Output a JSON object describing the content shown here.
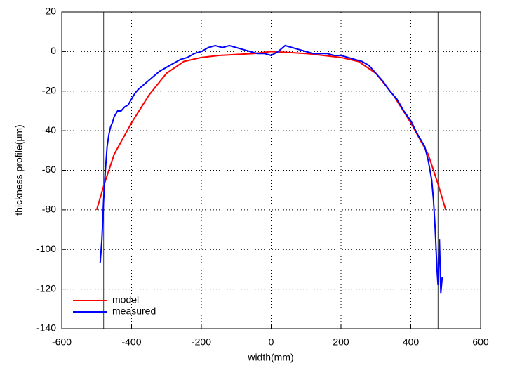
{
  "chart_data": {
    "type": "line",
    "x_label": "width(mm)",
    "y_label": "thickness profile(μm)",
    "xlim": [
      -600,
      600
    ],
    "ylim": [
      -140,
      20
    ],
    "xticks": [
      -600,
      -400,
      -200,
      0,
      200,
      400,
      600
    ],
    "yticks": [
      -140,
      -120,
      -100,
      -80,
      -60,
      -40,
      -20,
      0,
      20
    ],
    "grid": true,
    "legend": "lower-left",
    "vlines": [
      -480,
      478
    ],
    "series": [
      {
        "name": "model",
        "color": "#ff0000",
        "x": [
          -500,
          -480,
          -450,
          -400,
          -350,
          -300,
          -250,
          -200,
          -150,
          -100,
          -50,
          0,
          50,
          100,
          150,
          200,
          250,
          300,
          350,
          400,
          450,
          480,
          500
        ],
        "values": [
          -80,
          -68,
          -52,
          -36,
          -22,
          -11,
          -5,
          -3,
          -2,
          -1.5,
          -1,
          0,
          -0.5,
          -1,
          -2,
          -3,
          -5,
          -11,
          -22,
          -36,
          -52,
          -68,
          -80
        ]
      },
      {
        "name": "measured",
        "color": "#0000ff",
        "x": [
          -490,
          -485,
          -480,
          -475,
          -470,
          -465,
          -460,
          -455,
          -450,
          -440,
          -430,
          -420,
          -410,
          -400,
          -390,
          -380,
          -360,
          -340,
          -320,
          -300,
          -280,
          -260,
          -240,
          -220,
          -200,
          -180,
          -160,
          -140,
          -120,
          -100,
          -80,
          -60,
          -40,
          -20,
          0,
          20,
          40,
          60,
          80,
          100,
          120,
          140,
          160,
          180,
          200,
          220,
          240,
          260,
          280,
          300,
          320,
          340,
          360,
          380,
          400,
          420,
          430,
          440,
          450,
          460,
          465,
          470,
          475,
          478,
          482,
          486,
          490
        ],
        "values": [
          -107,
          -95,
          -75,
          -60,
          -48,
          -42,
          -38,
          -36,
          -33,
          -30,
          -30,
          -28,
          -27,
          -24,
          -21,
          -19,
          -16,
          -13,
          -10,
          -8,
          -6,
          -4,
          -3,
          -1,
          0,
          2,
          3,
          2,
          3,
          2,
          1,
          0,
          -1,
          -1,
          -2,
          0,
          3,
          2,
          1,
          0,
          -1,
          -1,
          -1,
          -2,
          -2,
          -3,
          -4,
          -5,
          -7,
          -11,
          -15,
          -20,
          -24,
          -30,
          -35,
          -42,
          -45,
          -48,
          -55,
          -65,
          -75,
          -90,
          -110,
          -118,
          -95,
          -122,
          -114
        ]
      }
    ]
  }
}
